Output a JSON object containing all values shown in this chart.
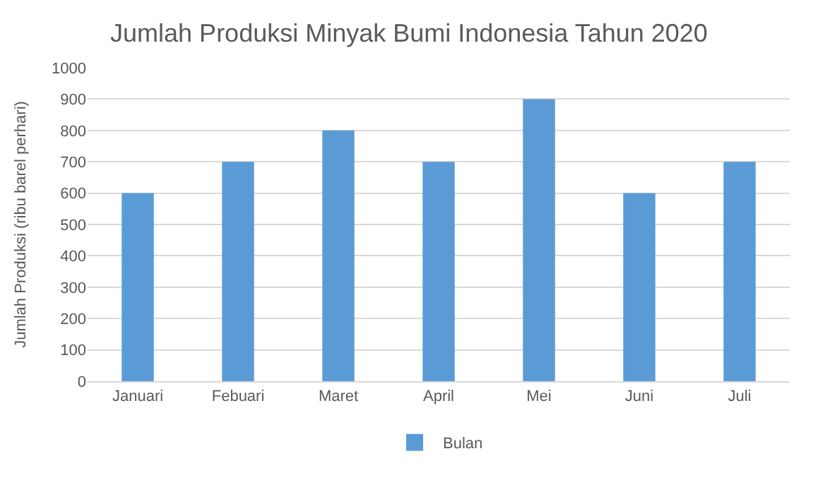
{
  "chart_data": {
    "type": "bar",
    "title": "Jumlah Produksi Minyak Bumi Indonesia Tahun 2020",
    "ylabel": "Jumlah Produksi (ribu barel perhari)",
    "categories": [
      "Januari",
      "Febuari",
      "Maret",
      "April",
      "Mei",
      "Juni",
      "Juli"
    ],
    "series": [
      {
        "name": "Bulan",
        "color": "#5b9bd5",
        "values": [
          600,
          700,
          800,
          700,
          900,
          600,
          700
        ]
      }
    ],
    "ylim": [
      0,
      1000
    ],
    "yticks": [
      0,
      100,
      200,
      300,
      400,
      500,
      600,
      700,
      800,
      900,
      1000
    ],
    "grid": "y",
    "legend": "bottom"
  }
}
